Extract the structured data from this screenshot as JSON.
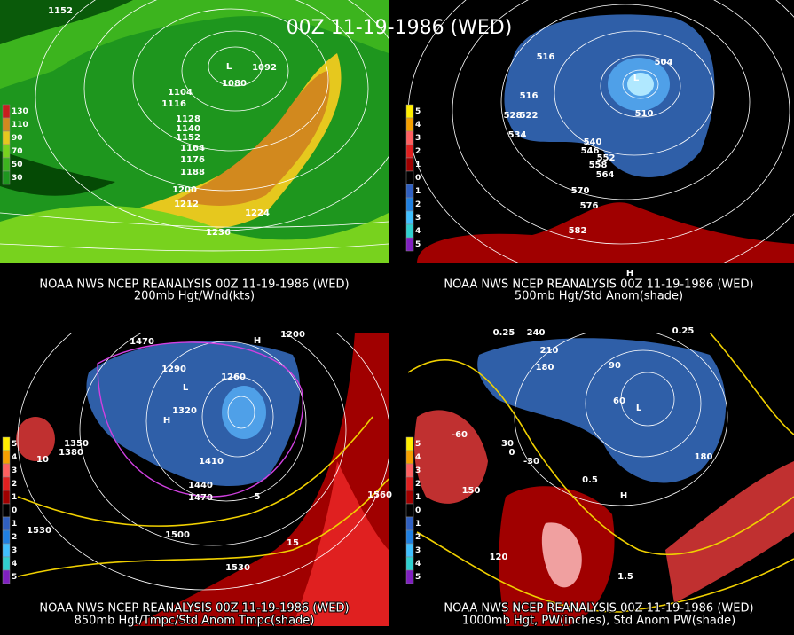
{
  "title": "00Z 11-19-1986 (WED)",
  "panels": [
    {
      "caption": [
        "NOAA NWS NCEP REANALYSIS 00Z 11-19-1986 (WED)",
        "200mb Hgt/Wnd(kts)"
      ],
      "legend": [
        "130",
        "110",
        "90",
        "70",
        "50",
        "30"
      ],
      "legend_colors": [
        "#c81e1e",
        "#d2891e",
        "#e6c81e",
        "#78d21e",
        "#3cb41e",
        "#1e961e"
      ],
      "labels": [
        "1152",
        "1092",
        "1080",
        "1104",
        "1116",
        "1128",
        "1140",
        "1152",
        "1164",
        "1176",
        "1188",
        "1200",
        "1212",
        "1224",
        "1236",
        "L"
      ]
    },
    {
      "caption": [
        "NOAA NWS NCEP REANALYSIS 00Z 11-19-1986 (WED)",
        "500mb Hgt/Std Anom(shade)"
      ],
      "legend": [
        "5",
        "4",
        "3",
        "2",
        "1",
        "0",
        "1",
        "2",
        "3",
        "4",
        "5"
      ],
      "legend_colors": [
        "#ffee00",
        "#f5a000",
        "#ff6060",
        "#e02020",
        "#a00000",
        "#000000",
        "#3060c0",
        "#2080e0",
        "#40c0ff",
        "#30d0d0",
        "#8020c0"
      ],
      "labels": [
        "516",
        "504",
        "516",
        "528",
        "522",
        "534",
        "540",
        "546",
        "552",
        "558",
        "564",
        "570",
        "576",
        "582",
        "510",
        "L",
        "H"
      ]
    },
    {
      "caption": [
        "NOAA NWS NCEP REANALYSIS 00Z 11-19-1986 (WED)",
        "850mb Hgt/Tmpc/Std Anom Tmpc(shade)"
      ],
      "legend": [
        "5",
        "4",
        "3",
        "2",
        "1",
        "0",
        "1",
        "2",
        "3",
        "4",
        "5"
      ],
      "legend_colors": [
        "#ffee00",
        "#f5a000",
        "#ff6060",
        "#e02020",
        "#a00000",
        "#000000",
        "#3060c0",
        "#2080e0",
        "#40c0ff",
        "#30d0d0",
        "#8020c0"
      ],
      "labels": [
        "1470",
        "1200",
        "1290",
        "1260",
        "1320",
        "1350",
        "1380",
        "1410",
        "1440",
        "1470",
        "1500",
        "1530",
        "1560",
        "1530",
        "10",
        "5",
        "15",
        "H",
        "H",
        "L"
      ]
    },
    {
      "caption": [
        "NOAA NWS NCEP REANALYSIS 00Z 11-19-1986 (WED)",
        "1000mb Hgt, PW(inches), Std Anom PW(shade)"
      ],
      "legend": [
        "5",
        "4",
        "3",
        "2",
        "1",
        "0",
        "1",
        "2",
        "3",
        "4",
        "5"
      ],
      "legend_colors": [
        "#ffee00",
        "#f5a000",
        "#ff6060",
        "#e02020",
        "#a00000",
        "#000000",
        "#3060c0",
        "#2080e0",
        "#40c0ff",
        "#30d0d0",
        "#8020c0"
      ],
      "labels": [
        "0.25",
        "240",
        "210",
        "180",
        "90",
        "60",
        "30",
        "0",
        "-30",
        "-60",
        "120",
        "150",
        "1.5",
        "0.5",
        "180",
        "0.25",
        "L",
        "H"
      ]
    }
  ]
}
